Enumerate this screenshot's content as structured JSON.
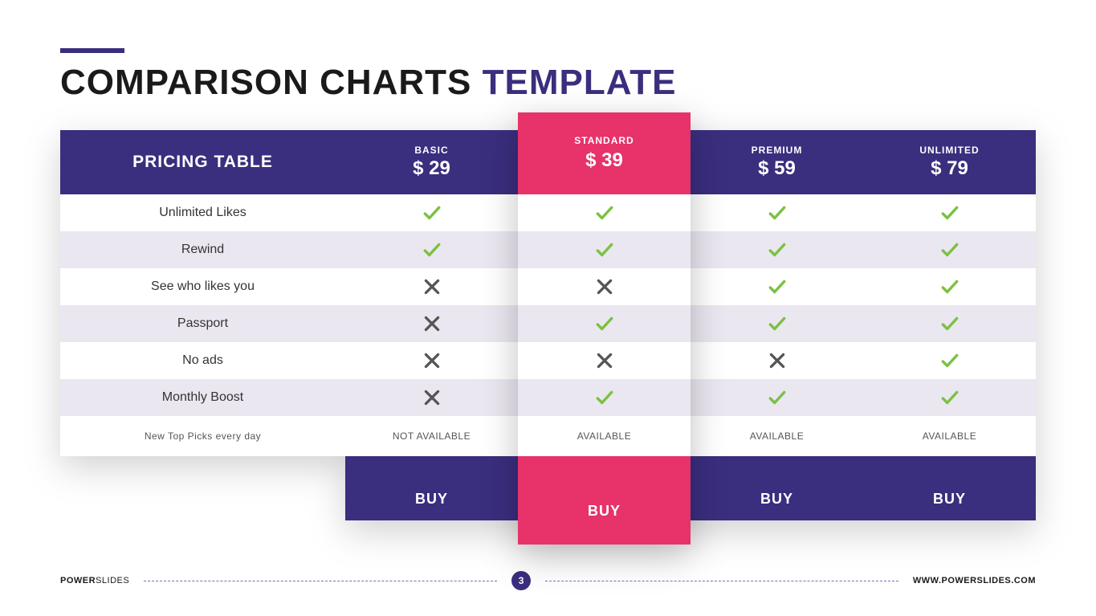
{
  "colors": {
    "primary": "#3a2e7e",
    "accent": "#e7326a",
    "row_alt": "#ebe7f1",
    "row_plain": "#ffffff",
    "check": "#7cc142",
    "cross": "#555555",
    "title_dark": "#1a1a1a"
  },
  "title": {
    "part1": "COMPARISON CHARTS ",
    "part2": "TEMPLATE"
  },
  "table": {
    "header_label": "PRICING TABLE",
    "plans": [
      {
        "name": "BASIC",
        "price": "$ 29",
        "featured": false
      },
      {
        "name": "STANDARD",
        "price": "$ 39",
        "featured": true
      },
      {
        "name": "PREMIUM",
        "price": "$ 59",
        "featured": false
      },
      {
        "name": "UNLIMITED",
        "price": "$ 79",
        "featured": false
      }
    ],
    "features": [
      {
        "label": "Unlimited Likes",
        "values": [
          "check",
          "check",
          "check",
          "check"
        ]
      },
      {
        "label": "Rewind",
        "values": [
          "check",
          "check",
          "check",
          "check"
        ]
      },
      {
        "label": "See who likes you",
        "values": [
          "cross",
          "cross",
          "check",
          "check"
        ]
      },
      {
        "label": "Passport",
        "values": [
          "cross",
          "check",
          "check",
          "check"
        ]
      },
      {
        "label": "No ads",
        "values": [
          "cross",
          "cross",
          "cross",
          "check"
        ]
      },
      {
        "label": "Monthly Boost",
        "values": [
          "cross",
          "check",
          "check",
          "check"
        ]
      }
    ],
    "availability": {
      "label": "New Top Picks every day",
      "values": [
        "NOT AVAILABLE",
        "AVAILABLE",
        "AVAILABLE",
        "AVAILABLE"
      ]
    },
    "buy_label": "BUY"
  },
  "footer": {
    "brand_bold": "POWER",
    "brand_light": "SLIDES",
    "page": "3",
    "url": "WWW.POWERSLIDES.COM"
  }
}
